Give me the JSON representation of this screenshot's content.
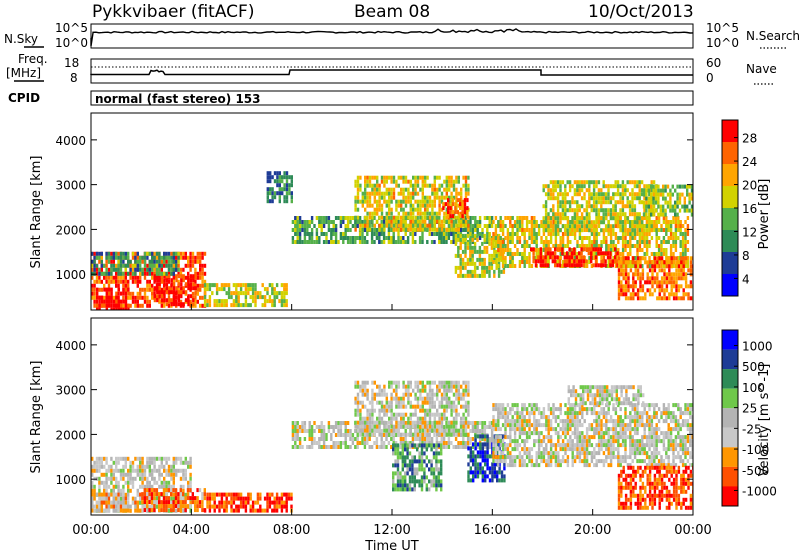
{
  "header": {
    "radar": "Pykkvibaer (fitACF)",
    "beam": "Beam 08",
    "date": "10/Oct/2013"
  },
  "noise_panel": {
    "left_label": "N.Sky",
    "right_label": "N.Search",
    "left_ticks": [
      "10^5",
      "10^0"
    ],
    "right_ticks": [
      "10^5",
      "10^0"
    ]
  },
  "freq_panel": {
    "left_label_1": "Freq.",
    "left_label_2": "[MHz]",
    "right_label": "Nave",
    "left_ticks": [
      "18",
      "8"
    ],
    "right_ticks": [
      "60",
      "0"
    ]
  },
  "cpid": {
    "label": "CPID",
    "text": "normal (fast stereo) 153"
  },
  "colors": {
    "power": [
      "#0000ff",
      "#1e3c96",
      "#2e8b57",
      "#55b04a",
      "#d2d200",
      "#ffa500",
      "#ff6400",
      "#ff0000"
    ],
    "velocity": [
      "#ff0000",
      "#ff5000",
      "#ff9600",
      "#c8c8c8",
      "#b4b4b4",
      "#6fc84a",
      "#2e8b57",
      "#1e3c96",
      "#0000ff"
    ]
  },
  "chart_data": [
    {
      "type": "heatmap",
      "name": "power",
      "ylabel": "Slant Range [km]",
      "yticks": [
        1000,
        2000,
        3000,
        4000
      ],
      "ylim": [
        200,
        4600
      ],
      "xlim": [
        0,
        24
      ],
      "colorbar": {
        "label": "Power [dB]",
        "ticks": [
          "28",
          "24",
          "20",
          "16",
          "12",
          "8",
          "4"
        ],
        "range": [
          0,
          30
        ]
      },
      "regions": [
        {
          "t0": 0.0,
          "t1": 4.5,
          "r0": 250,
          "r1": 1500,
          "level": 0.85
        },
        {
          "t0": 0.2,
          "t1": 1.5,
          "r0": 250,
          "r1": 700,
          "level": 1.0
        },
        {
          "t0": 2.5,
          "t1": 4.2,
          "r0": 300,
          "r1": 1000,
          "level": 0.95
        },
        {
          "t0": 0.0,
          "t1": 3.5,
          "r0": 1000,
          "r1": 1500,
          "level": 0.35
        },
        {
          "t0": 4.5,
          "t1": 7.8,
          "r0": 300,
          "r1": 800,
          "level": 0.55
        },
        {
          "t0": 7.0,
          "t1": 8.0,
          "r0": 2600,
          "r1": 3300,
          "level": 0.3
        },
        {
          "t0": 8.0,
          "t1": 16.0,
          "r0": 1700,
          "r1": 2300,
          "level": 0.4
        },
        {
          "t0": 10.5,
          "t1": 15.0,
          "r0": 2000,
          "r1": 3200,
          "level": 0.6
        },
        {
          "t0": 14.0,
          "t1": 15.0,
          "r0": 2300,
          "r1": 2700,
          "level": 0.85
        },
        {
          "t0": 14.5,
          "t1": 16.5,
          "r0": 1000,
          "r1": 1900,
          "level": 0.55
        },
        {
          "t0": 16.0,
          "t1": 23.8,
          "r0": 1200,
          "r1": 2300,
          "level": 0.6
        },
        {
          "t0": 17.5,
          "t1": 21.0,
          "r0": 1200,
          "r1": 1600,
          "level": 0.95
        },
        {
          "t0": 18.0,
          "t1": 22.5,
          "r0": 2000,
          "r1": 3100,
          "level": 0.55
        },
        {
          "t0": 21.0,
          "t1": 24.0,
          "r0": 500,
          "r1": 1400,
          "level": 0.8
        },
        {
          "t0": 22.0,
          "t1": 24.0,
          "r0": 2300,
          "r1": 3000,
          "level": 0.5
        }
      ]
    },
    {
      "type": "heatmap",
      "name": "velocity",
      "ylabel": "Slant Range [km]",
      "xlabel": "Time UT",
      "yticks": [
        1000,
        2000,
        3000,
        4000
      ],
      "ylim": [
        200,
        4600
      ],
      "xlim": [
        0,
        24
      ],
      "xticks": [
        "00:00",
        "04:00",
        "08:00",
        "12:00",
        "16:00",
        "20:00",
        "00:00"
      ],
      "colorbar": {
        "label": "Velocity [m s^-1]",
        "ticks": [
          "1000",
          "500",
          "100",
          "25",
          "-25",
          "-100",
          "-500",
          "-1000"
        ],
        "range": [
          -1000,
          1000
        ]
      },
      "regions": [
        {
          "t0": 0.0,
          "t1": 4.0,
          "r0": 250,
          "r1": 1500,
          "level": 0.45
        },
        {
          "t0": 0.0,
          "t1": 2.0,
          "r0": 300,
          "r1": 700,
          "level": 0.35
        },
        {
          "t0": 2.0,
          "t1": 4.5,
          "r0": 300,
          "r1": 800,
          "level": 0.2
        },
        {
          "t0": 4.5,
          "t1": 8.0,
          "r0": 300,
          "r1": 700,
          "level": 0.15
        },
        {
          "t0": 8.0,
          "t1": 16.0,
          "r0": 1700,
          "r1": 2300,
          "level": 0.45
        },
        {
          "t0": 10.5,
          "t1": 15.0,
          "r0": 2000,
          "r1": 3200,
          "level": 0.45
        },
        {
          "t0": 15.0,
          "t1": 16.5,
          "r0": 1000,
          "r1": 2000,
          "level": 0.85
        },
        {
          "t0": 16.0,
          "t1": 24.0,
          "r0": 1300,
          "r1": 2700,
          "level": 0.45
        },
        {
          "t0": 19.0,
          "t1": 22.0,
          "r0": 2700,
          "r1": 3100,
          "level": 0.45
        },
        {
          "t0": 21.0,
          "t1": 24.0,
          "r0": 400,
          "r1": 1300,
          "level": 0.15
        },
        {
          "t0": 12.0,
          "t1": 14.0,
          "r0": 800,
          "r1": 1800,
          "level": 0.65
        }
      ]
    }
  ]
}
